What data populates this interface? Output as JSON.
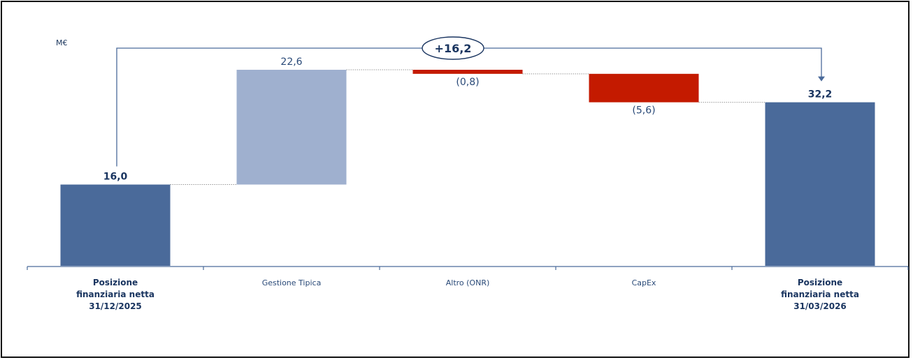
{
  "chart_data": {
    "type": "bar",
    "subtype": "waterfall",
    "unit_label": "M€",
    "categories": [
      [
        "Posizione",
        "finanziaria netta",
        "31/12/2025"
      ],
      [
        "Gestione Tipica"
      ],
      [
        "Altro (ONR)"
      ],
      [
        "CapEx"
      ],
      [
        "Posizione",
        "finanziaria netta",
        "31/03/2026"
      ]
    ],
    "bars": [
      {
        "kind": "total",
        "start": 0,
        "end": 16.0,
        "label": "16,0",
        "color": "#4a6a9a"
      },
      {
        "kind": "increase",
        "start": 16.0,
        "end": 38.6,
        "label": "22,6",
        "color": "#9fb0cf"
      },
      {
        "kind": "decrease",
        "start": 38.6,
        "end": 37.8,
        "label": "(0,8)",
        "color": "#c41a00"
      },
      {
        "kind": "decrease",
        "start": 37.8,
        "end": 32.2,
        "label": "(5,6)",
        "color": "#c41a00"
      },
      {
        "kind": "total",
        "start": 0,
        "end": 32.2,
        "label": "32,2",
        "color": "#4a6a9a"
      }
    ],
    "delta_label": "+16,2",
    "ylim": [
      0,
      38.6
    ],
    "grid": false,
    "legend": "none"
  }
}
